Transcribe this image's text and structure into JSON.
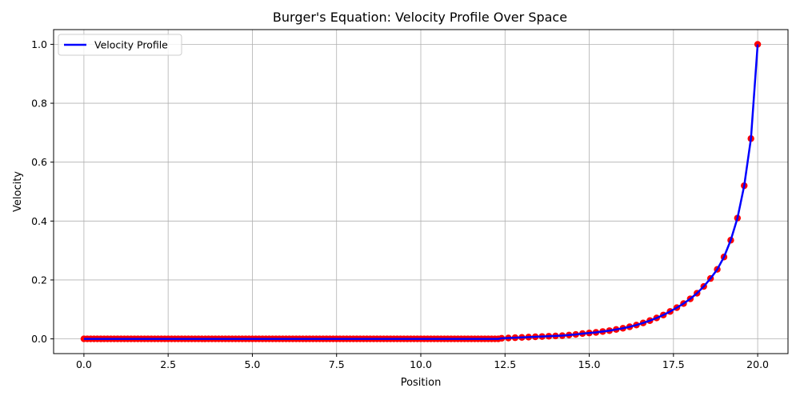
{
  "chart_data": {
    "type": "line",
    "title": "Burger's Equation: Velocity Profile Over Space",
    "xlabel": "Position",
    "ylabel": "Velocity",
    "xlim": [
      -0.9,
      20.9
    ],
    "ylim": [
      -0.05,
      1.05
    ],
    "x_ticks": [
      0.0,
      2.5,
      5.0,
      7.5,
      10.0,
      12.5,
      15.0,
      17.5,
      20.0
    ],
    "x_tick_labels": [
      "0.0",
      "2.5",
      "5.0",
      "7.5",
      "10.0",
      "12.5",
      "15.0",
      "17.5",
      "20.0"
    ],
    "y_ticks": [
      0.0,
      0.2,
      0.4,
      0.6,
      0.8,
      1.0
    ],
    "y_tick_labels": [
      "0.0",
      "0.2",
      "0.4",
      "0.6",
      "0.8",
      "1.0"
    ],
    "grid": true,
    "legend": {
      "position": "top-left",
      "entries": [
        "Velocity Profile"
      ]
    },
    "series": [
      {
        "name": "Velocity Profile",
        "line_color": "#0000ff",
        "marker_color": "#ff0000",
        "x": [
          12.4,
          12.6,
          12.8,
          13.0,
          13.2,
          13.4,
          13.6,
          13.8,
          14.0,
          14.2,
          14.4,
          14.6,
          14.8,
          15.0,
          15.2,
          15.4,
          15.6,
          15.8,
          16.0,
          16.2,
          16.4,
          16.6,
          16.8,
          17.0,
          17.2,
          17.4,
          17.6,
          17.8,
          18.0,
          18.2,
          18.4,
          18.6,
          18.8,
          19.0,
          19.2,
          19.4,
          19.6,
          19.8,
          20.0
        ],
        "y": [
          0.002,
          0.003,
          0.004,
          0.005,
          0.006,
          0.007,
          0.008,
          0.009,
          0.01,
          0.011,
          0.013,
          0.015,
          0.018,
          0.02,
          0.022,
          0.025,
          0.028,
          0.032,
          0.036,
          0.041,
          0.047,
          0.054,
          0.062,
          0.071,
          0.081,
          0.093,
          0.106,
          0.12,
          0.136,
          0.155,
          0.178,
          0.205,
          0.236,
          0.278,
          0.335,
          0.41,
          0.52,
          0.68,
          1.0
        ],
        "flat_from": 0.0,
        "flat_to": 12.3,
        "flat_step": 0.1,
        "flat_value": 0.0
      }
    ]
  }
}
